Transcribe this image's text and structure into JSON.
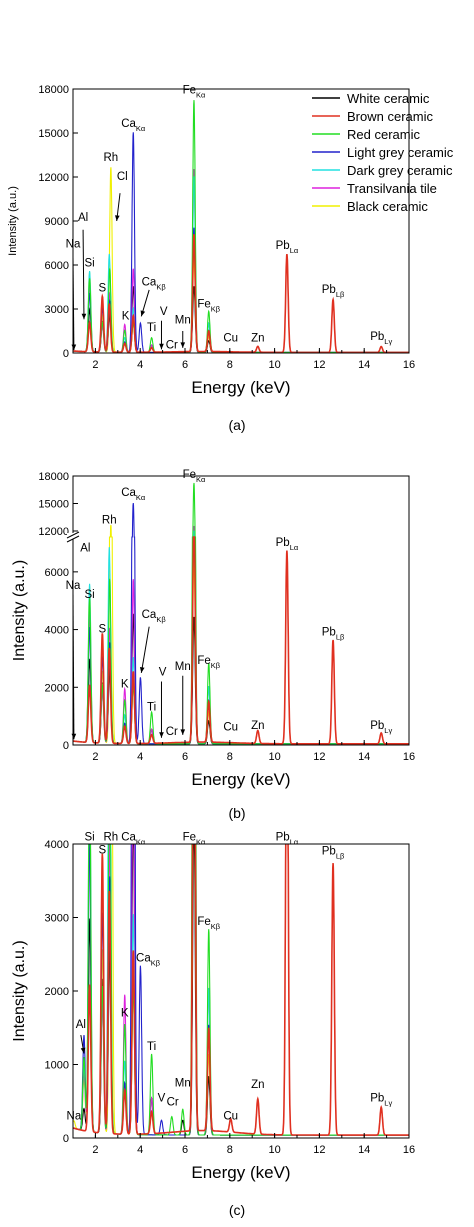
{
  "legend": {
    "position": "top-right",
    "items": [
      {
        "label": "White ceramic",
        "color": "#000000"
      },
      {
        "label": "Brown ceramic",
        "color": "#e03020"
      },
      {
        "label": "Red ceramic",
        "color": "#22dd22"
      },
      {
        "label": "Light grey ceramic",
        "color": "#2222cc"
      },
      {
        "label": "Dark grey ceramic",
        "color": "#22e0e0"
      },
      {
        "label": "Transilvania tile",
        "color": "#dd22dd"
      },
      {
        "label": "Black ceramic",
        "color": "#f0f000"
      }
    ]
  },
  "chart_data": [
    {
      "type": "line",
      "caption": "(a)",
      "xlabel": "Energy (keV)",
      "ylabel": "Intensity (a.u.)",
      "xlim": [
        1,
        16
      ],
      "ylim": [
        0,
        18000
      ],
      "xticks": [
        2,
        4,
        6,
        8,
        10,
        12,
        14,
        16
      ],
      "yticks": [
        0,
        3000,
        6000,
        9000,
        12000,
        15000,
        18000
      ],
      "peaks": {
        "white": [
          [
            1.75,
            2900
          ],
          [
            2.32,
            2100
          ],
          [
            2.64,
            2600
          ],
          [
            3.31,
            700
          ],
          [
            3.69,
            4500
          ],
          [
            4.51,
            500
          ],
          [
            6.4,
            4500
          ],
          [
            7.06,
            800
          ]
        ],
        "brown": [
          [
            1.74,
            2000
          ],
          [
            2.31,
            3800
          ],
          [
            2.62,
            3300
          ],
          [
            3.31,
            600
          ],
          [
            3.69,
            2500
          ],
          [
            4.51,
            300
          ],
          [
            6.4,
            8000
          ],
          [
            7.06,
            1400
          ],
          [
            9.25,
            400
          ],
          [
            10.55,
            6700
          ],
          [
            12.61,
            3600
          ],
          [
            14.76,
            400
          ]
        ],
        "red": [
          [
            1.74,
            5000
          ],
          [
            2.31,
            2000
          ],
          [
            2.64,
            5700
          ],
          [
            3.31,
            1500
          ],
          [
            3.69,
            2000
          ],
          [
            4.51,
            1000
          ],
          [
            6.4,
            17200
          ],
          [
            7.06,
            2800
          ]
        ],
        "lightgrey": [
          [
            1.74,
            4000
          ],
          [
            2.31,
            3000
          ],
          [
            2.64,
            3500
          ],
          [
            3.31,
            700
          ],
          [
            3.69,
            15000
          ],
          [
            4.01,
            2000
          ],
          [
            6.4,
            8500
          ],
          [
            7.06,
            1500
          ]
        ],
        "darkgrey": [
          [
            1.74,
            5500
          ],
          [
            2.31,
            3500
          ],
          [
            2.62,
            6700
          ],
          [
            3.31,
            1000
          ],
          [
            3.69,
            3000
          ],
          [
            6.4,
            12000
          ],
          [
            7.06,
            2000
          ]
        ],
        "transilvania": [
          [
            1.74,
            4500
          ],
          [
            2.31,
            1800
          ],
          [
            2.64,
            4000
          ],
          [
            3.31,
            1900
          ],
          [
            3.69,
            5700
          ],
          [
            4.51,
            500
          ],
          [
            6.4,
            12500
          ],
          [
            7.06,
            2000
          ]
        ],
        "black": [
          [
            1.74,
            5400
          ],
          [
            2.31,
            2500
          ],
          [
            2.69,
            12600
          ],
          [
            3.31,
            600
          ],
          [
            3.69,
            2000
          ],
          [
            6.4,
            6500
          ],
          [
            7.06,
            1100
          ]
        ]
      }
    },
    {
      "type": "line",
      "caption": "(b)",
      "xlabel": "Energy (keV)",
      "ylabel": "Intensity (a.u.)",
      "xlim": [
        1,
        16
      ],
      "ylim": [
        0,
        18000
      ],
      "axis_break": [
        7000,
        12000
      ],
      "xticks": [
        2,
        4,
        6,
        8,
        10,
        12,
        14,
        16
      ],
      "yticks": [
        0,
        2000,
        4000,
        6000,
        12000,
        15000,
        18000
      ],
      "peaks": {
        "white": [
          [
            1.75,
            2900
          ],
          [
            2.32,
            2100
          ],
          [
            2.64,
            2600
          ],
          [
            3.31,
            700
          ],
          [
            3.69,
            4500
          ],
          [
            4.51,
            500
          ],
          [
            6.4,
            4400
          ],
          [
            7.06,
            800
          ]
        ],
        "brown": [
          [
            1.74,
            2000
          ],
          [
            2.31,
            3800
          ],
          [
            2.62,
            3300
          ],
          [
            3.31,
            600
          ],
          [
            3.69,
            2500
          ],
          [
            4.51,
            300
          ],
          [
            6.4,
            8000
          ],
          [
            7.06,
            1400
          ],
          [
            9.25,
            450
          ],
          [
            10.55,
            6700
          ],
          [
            12.61,
            3600
          ],
          [
            14.76,
            380
          ]
        ],
        "red": [
          [
            1.74,
            5000
          ],
          [
            2.31,
            2000
          ],
          [
            2.64,
            5700
          ],
          [
            3.31,
            1500
          ],
          [
            3.69,
            2000
          ],
          [
            4.51,
            1100
          ],
          [
            6.4,
            17200
          ],
          [
            7.06,
            2800
          ]
        ],
        "lightgrey": [
          [
            1.74,
            4000
          ],
          [
            2.31,
            3000
          ],
          [
            2.64,
            3500
          ],
          [
            3.31,
            700
          ],
          [
            3.69,
            15000
          ],
          [
            4.01,
            2300
          ],
          [
            6.4,
            8500
          ],
          [
            7.06,
            1500
          ]
        ],
        "darkgrey": [
          [
            1.74,
            5500
          ],
          [
            2.31,
            3500
          ],
          [
            2.62,
            6800
          ],
          [
            3.31,
            1000
          ],
          [
            3.69,
            3000
          ],
          [
            6.4,
            12000
          ],
          [
            7.06,
            2000
          ]
        ],
        "transilvania": [
          [
            1.74,
            4500
          ],
          [
            2.31,
            1800
          ],
          [
            2.64,
            4000
          ],
          [
            3.31,
            1900
          ],
          [
            3.69,
            5700
          ],
          [
            4.51,
            500
          ],
          [
            6.4,
            12500
          ],
          [
            7.06,
            2000
          ]
        ],
        "black": [
          [
            1.74,
            5400
          ],
          [
            2.31,
            2500
          ],
          [
            2.69,
            12600
          ],
          [
            3.31,
            600
          ],
          [
            3.69,
            2000
          ],
          [
            6.4,
            6500
          ],
          [
            7.06,
            1100
          ]
        ]
      }
    },
    {
      "type": "line",
      "caption": "(c)",
      "xlabel": "Energy (keV)",
      "ylabel": "Intensity (a.u.)",
      "xlim": [
        1,
        16
      ],
      "ylim": [
        0,
        4000
      ],
      "xticks": [
        2,
        4,
        6,
        8,
        10,
        12,
        14,
        16
      ],
      "yticks": [
        0,
        1000,
        2000,
        3000,
        4000
      ],
      "peaks": {
        "white": [
          [
            1.49,
            300
          ],
          [
            1.75,
            2900
          ],
          [
            2.32,
            2100
          ],
          [
            2.64,
            2600
          ],
          [
            3.31,
            700
          ],
          [
            3.69,
            4500
          ],
          [
            4.51,
            500
          ],
          [
            5.9,
            200
          ],
          [
            6.4,
            4400
          ],
          [
            7.06,
            800
          ]
        ],
        "brown": [
          [
            1.74,
            2000
          ],
          [
            2.31,
            3800
          ],
          [
            2.62,
            3300
          ],
          [
            3.31,
            600
          ],
          [
            3.69,
            2500
          ],
          [
            4.51,
            300
          ],
          [
            6.4,
            8000
          ],
          [
            7.06,
            1400
          ],
          [
            8.04,
            180
          ],
          [
            9.25,
            480
          ],
          [
            10.55,
            6700
          ],
          [
            12.61,
            3700
          ],
          [
            14.76,
            380
          ]
        ],
        "red": [
          [
            1.49,
            1000
          ],
          [
            1.74,
            5000
          ],
          [
            2.31,
            2000
          ],
          [
            2.64,
            5700
          ],
          [
            3.31,
            1500
          ],
          [
            3.69,
            2000
          ],
          [
            4.51,
            1100
          ],
          [
            5.41,
            250
          ],
          [
            5.9,
            350
          ],
          [
            6.4,
            17200
          ],
          [
            7.06,
            2800
          ]
        ],
        "lightgrey": [
          [
            1.49,
            1300
          ],
          [
            1.74,
            4000
          ],
          [
            2.31,
            3000
          ],
          [
            2.64,
            3500
          ],
          [
            3.31,
            700
          ],
          [
            3.69,
            15000
          ],
          [
            4.01,
            2300
          ],
          [
            4.95,
            200
          ],
          [
            6.4,
            8500
          ],
          [
            7.06,
            1500
          ]
        ],
        "darkgrey": [
          [
            1.49,
            900
          ],
          [
            1.74,
            5500
          ],
          [
            2.31,
            3500
          ],
          [
            2.62,
            6800
          ],
          [
            3.31,
            1000
          ],
          [
            3.69,
            3000
          ],
          [
            6.4,
            12000
          ],
          [
            7.06,
            2000
          ]
        ],
        "transilvania": [
          [
            1.49,
            800
          ],
          [
            1.74,
            4500
          ],
          [
            2.31,
            1800
          ],
          [
            2.64,
            4000
          ],
          [
            3.31,
            1900
          ],
          [
            3.69,
            5700
          ],
          [
            4.51,
            500
          ],
          [
            6.4,
            12500
          ],
          [
            7.06,
            2000
          ]
        ],
        "black": [
          [
            1.04,
            100
          ],
          [
            1.49,
            700
          ],
          [
            1.74,
            5400
          ],
          [
            2.31,
            2500
          ],
          [
            2.69,
            12600
          ],
          [
            3.31,
            600
          ],
          [
            3.69,
            2000
          ],
          [
            6.4,
            6500
          ],
          [
            7.06,
            1100
          ]
        ]
      }
    }
  ],
  "annotations": [
    [
      {
        "t": "Fe",
        "s": "Kα",
        "x": 6.4,
        "y": 17700
      },
      {
        "t": "Ca",
        "s": "Kα",
        "x": 3.69,
        "y": 15400
      },
      {
        "t": "Rh",
        "x": 2.69,
        "y": 13100
      },
      {
        "t": "Cl",
        "x": 3.2,
        "y": 11800,
        "arrow": [
          3.1,
          10900,
          2.95,
          9000
        ]
      },
      {
        "t": "Al",
        "x": 1.45,
        "y": 9000,
        "arrow": [
          1.45,
          8400,
          1.49,
          2300
        ]
      },
      {
        "t": "Na",
        "x": 1.0,
        "y": 7200,
        "arrow": [
          1.0,
          6600,
          1.04,
          200
        ]
      },
      {
        "t": "Si",
        "x": 1.74,
        "y": 5900
      },
      {
        "t": "S",
        "x": 2.31,
        "y": 4200
      },
      {
        "t": "Pb",
        "s": "Lα",
        "x": 10.55,
        "y": 7100
      },
      {
        "t": "Ca",
        "s": "Kβ",
        "x": 4.6,
        "y": 4600,
        "arrow": [
          4.4,
          4300,
          4.05,
          2500
        ]
      },
      {
        "t": "K",
        "x": 3.35,
        "y": 2300
      },
      {
        "t": "Fe",
        "s": "Kβ",
        "x": 7.06,
        "y": 3100
      },
      {
        "t": "Pb",
        "s": "Lβ",
        "x": 12.61,
        "y": 4100
      },
      {
        "t": "V",
        "x": 5.05,
        "y": 2600,
        "arrow": [
          4.95,
          2200,
          4.95,
          250
        ]
      },
      {
        "t": "Mn",
        "x": 5.9,
        "y": 2000,
        "arrow": [
          5.9,
          1500,
          5.9,
          350
        ]
      },
      {
        "t": "Ti",
        "x": 4.51,
        "y": 1500
      },
      {
        "t": "Cr",
        "x": 5.41,
        "y": 300
      },
      {
        "t": "Cu",
        "x": 8.04,
        "y": 800
      },
      {
        "t": "Zn",
        "x": 9.25,
        "y": 800
      },
      {
        "t": "Pb",
        "s": "Lγ",
        "x": 14.76,
        "y": 900
      }
    ],
    [
      {
        "t": "Ca",
        "s": "Kα",
        "x": 3.69,
        "y": 15800
      },
      {
        "t": "Fe",
        "s": "Kα",
        "x": 6.4,
        "y": 17800
      },
      {
        "t": "Rh",
        "x": 2.62,
        "y": 12800
      },
      {
        "t": "Al",
        "x": 1.55,
        "y": 6700
      },
      {
        "t": "Si",
        "x": 1.74,
        "y": 5100
      },
      {
        "t": "Na",
        "x": 1.0,
        "y": 5400,
        "arrow": [
          1.0,
          5300,
          1.04,
          200
        ]
      },
      {
        "t": "Pb",
        "s": "Lα",
        "x": 10.55,
        "y": 6900
      },
      {
        "t": "Ca",
        "s": "Kβ",
        "x": 4.6,
        "y": 4400,
        "arrow": [
          4.4,
          4100,
          4.05,
          2500
        ]
      },
      {
        "t": "S",
        "x": 2.31,
        "y": 3900
      },
      {
        "t": "Pb",
        "s": "Lβ",
        "x": 12.61,
        "y": 3800
      },
      {
        "t": "K",
        "x": 3.31,
        "y": 2000
      },
      {
        "t": "V",
        "x": 5.0,
        "y": 2400,
        "arrow": [
          4.95,
          2200,
          4.95,
          250
        ]
      },
      {
        "t": "Mn",
        "x": 5.9,
        "y": 2600,
        "arrow": [
          5.9,
          2400,
          5.9,
          350
        ]
      },
      {
        "t": "Fe",
        "s": "Kβ",
        "x": 7.06,
        "y": 2800
      },
      {
        "t": "Ti",
        "x": 4.51,
        "y": 1200
      },
      {
        "t": "Cr",
        "x": 5.41,
        "y": 350
      },
      {
        "t": "Cu",
        "x": 8.04,
        "y": 500
      },
      {
        "t": "Zn",
        "x": 9.25,
        "y": 550
      },
      {
        "t": "Pb",
        "s": "Lγ",
        "x": 14.76,
        "y": 550
      }
    ],
    [
      {
        "t": "Si",
        "x": 1.74,
        "y": 4050
      },
      {
        "t": "S",
        "x": 2.31,
        "y": 3870
      },
      {
        "t": "Rh",
        "x": 2.69,
        "y": 4050
      },
      {
        "t": "Ca",
        "s": "Kα",
        "x": 3.69,
        "y": 4050
      },
      {
        "t": "Fe",
        "s": "Kα",
        "x": 6.4,
        "y": 4050
      },
      {
        "t": "Pb",
        "s": "Lα",
        "x": 10.55,
        "y": 4050
      },
      {
        "t": "Pb",
        "s": "Lβ",
        "x": 12.61,
        "y": 3860
      },
      {
        "t": "Fe",
        "s": "Kβ",
        "x": 7.06,
        "y": 2900
      },
      {
        "t": "Ca",
        "s": "Kβ",
        "x": 4.35,
        "y": 2400
      },
      {
        "t": "K",
        "x": 3.31,
        "y": 1650
      },
      {
        "t": "Ti",
        "x": 4.51,
        "y": 1200
      },
      {
        "t": "Al",
        "x": 1.35,
        "y": 1500,
        "arrow": [
          1.35,
          1400,
          1.49,
          1150
        ]
      },
      {
        "t": "Mn",
        "x": 5.9,
        "y": 700
      },
      {
        "t": "V",
        "x": 4.95,
        "y": 500
      },
      {
        "t": "Cr",
        "x": 5.45,
        "y": 440
      },
      {
        "t": "Zn",
        "x": 9.25,
        "y": 680
      },
      {
        "t": "Cu",
        "x": 8.04,
        "y": 250
      },
      {
        "t": "Na",
        "x": 1.04,
        "y": 250
      },
      {
        "t": "Pb",
        "s": "Lγ",
        "x": 14.76,
        "y": 500
      }
    ]
  ]
}
